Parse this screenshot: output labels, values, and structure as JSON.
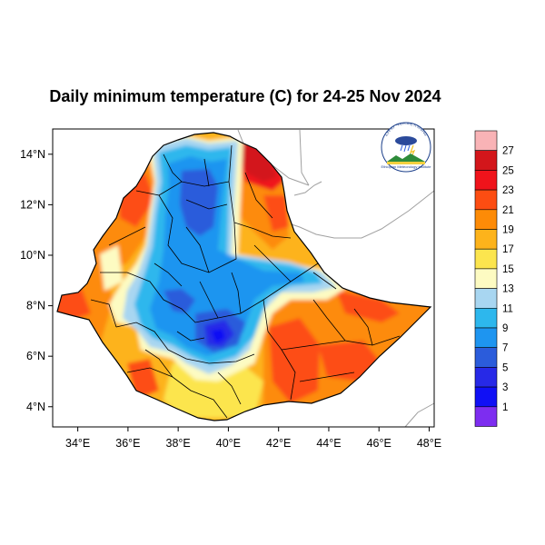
{
  "title": "Daily minimum temperature (C) for 24-25 Nov 2024",
  "map": {
    "lon_range": [
      33.0,
      48.2
    ],
    "lat_range": [
      3.2,
      15.0
    ],
    "lon_ticks": [
      "34°E",
      "36°E",
      "38°E",
      "40°E",
      "42°E",
      "44°E",
      "46°E",
      "48°E"
    ],
    "lon_tick_values": [
      34,
      36,
      38,
      40,
      42,
      44,
      46,
      48
    ],
    "lat_ticks": [
      "4°N",
      "6°N",
      "8°N",
      "10°N",
      "12°N",
      "14°N"
    ],
    "lat_tick_values": [
      4,
      6,
      8,
      10,
      12,
      14
    ],
    "logo": {
      "arc_text": "ኢትዮጵያ ሜቴዎሮሎጂ ኢንስቲትዩት",
      "subtitle": "Ethiopian Meteorology Institute"
    }
  },
  "colorbar": {
    "labels": [
      "27",
      "25",
      "23",
      "21",
      "19",
      "17",
      "15",
      "13",
      "11",
      "9",
      "7",
      "5",
      "3",
      "1"
    ],
    "colors": [
      "#f9b3b6",
      "#d3161b",
      "#f0131b",
      "#fd4d12",
      "#fd8b07",
      "#fdb31b",
      "#fce54e",
      "#fdfbc2",
      "#a8d6f1",
      "#2db7ed",
      "#1e95f0",
      "#2b5cdb",
      "#2729e7",
      "#1010f5",
      "#7d2df0"
    ]
  }
}
